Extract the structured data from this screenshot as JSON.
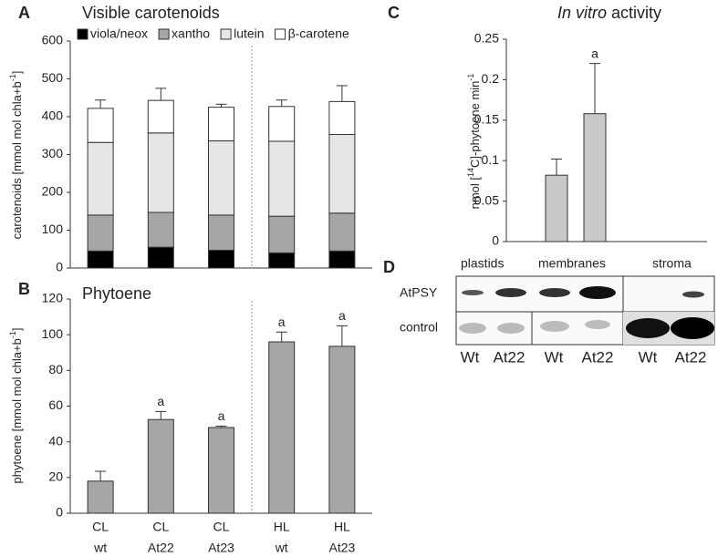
{
  "chart_data": [
    {
      "type": "stacked_bar",
      "panel": "A",
      "title": "Visible carotenoids",
      "ylabel": [
        "carotenoids [mmol mol chla+b",
        "-1",
        "]"
      ],
      "ylim": [
        0,
        600
      ],
      "yticks": [
        0,
        100,
        200,
        300,
        400,
        500,
        600
      ],
      "series": [
        {
          "name": "viola/neox",
          "color": "#000000",
          "values": [
            45,
            55,
            47,
            40,
            45
          ]
        },
        {
          "name": "xantho",
          "color": "#a6a6a6",
          "values": [
            95,
            92,
            93,
            97,
            100
          ]
        },
        {
          "name": "lutein",
          "color": "#e6e6e6",
          "values": [
            192,
            210,
            196,
            198,
            208
          ]
        },
        {
          "name": "β-carotene",
          "color": "#ffffff",
          "values": [
            90,
            86,
            89,
            92,
            87
          ]
        }
      ],
      "errors": [
        22,
        32,
        8,
        17,
        42
      ]
    },
    {
      "type": "bar",
      "panel": "B",
      "title": "Phytoene",
      "ylabel": [
        "phytoene [mmol mol chla+b",
        "-1",
        "]"
      ],
      "categories": [
        [
          "CL",
          "wt"
        ],
        [
          "CL",
          "At22"
        ],
        [
          "CL",
          "At23"
        ],
        [
          "HL",
          "wt"
        ],
        [
          "HL",
          "At23"
        ]
      ],
      "values": [
        18,
        52.5,
        48,
        96,
        93.5
      ],
      "errors": [
        5.5,
        4.5,
        0.8,
        5.5,
        11.5
      ],
      "annotations": [
        null,
        "a",
        "a",
        "a",
        "a"
      ],
      "color": "#a6a6a6",
      "ylim": [
        0,
        120
      ],
      "yticks": [
        0,
        20,
        40,
        60,
        80,
        100,
        120
      ]
    },
    {
      "type": "bar",
      "panel": "C",
      "title": [
        "In vitro",
        "activity"
      ],
      "ylabel": [
        "nmol [",
        "14",
        "C]-phytoene min",
        "-1"
      ],
      "values": [
        0.082,
        0.158
      ],
      "errors": [
        0.02,
        0.062
      ],
      "annotations": [
        null,
        "a"
      ],
      "color": "#c8c8c8",
      "ylim": [
        0,
        0.25
      ],
      "yticks": [
        0,
        0.05,
        0.1,
        0.15,
        0.2,
        0.25
      ]
    }
  ],
  "blot": {
    "panel": "D",
    "groups": [
      "plastids",
      "membranes",
      "stroma"
    ],
    "rows": [
      "AtPSY",
      "control"
    ],
    "lanes": [
      "Wt",
      "At22",
      "Wt",
      "At22",
      "Wt",
      "At22"
    ]
  }
}
